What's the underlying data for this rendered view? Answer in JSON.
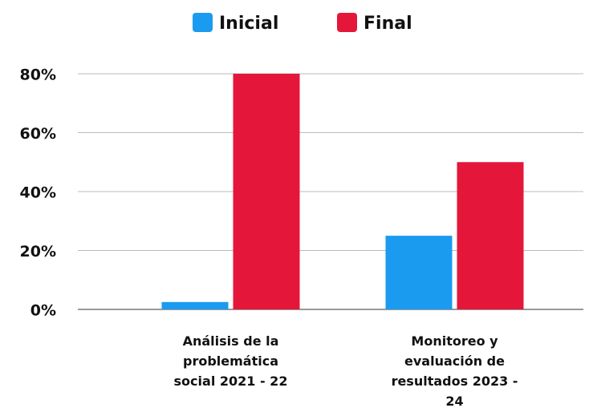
{
  "chart_data": {
    "type": "bar",
    "categories": [
      "Análisis de la problemática social 2021 - 22",
      "Monitoreo y evaluación de resultados 2023 - 24"
    ],
    "series": [
      {
        "name": "Inicial",
        "color": "#1a9bf0",
        "values": [
          2.5,
          25
        ]
      },
      {
        "name": "Final",
        "color": "#e4163a",
        "values": [
          80,
          50
        ]
      }
    ],
    "ylim": [
      0,
      80
    ],
    "yticks": [
      {
        "value": 0,
        "label": "0%"
      },
      {
        "value": 20,
        "label": "20%"
      },
      {
        "value": 40,
        "label": "40%"
      },
      {
        "value": 60,
        "label": "60%"
      },
      {
        "value": 80,
        "label": "80%"
      }
    ],
    "grid": true,
    "legend": "top"
  }
}
